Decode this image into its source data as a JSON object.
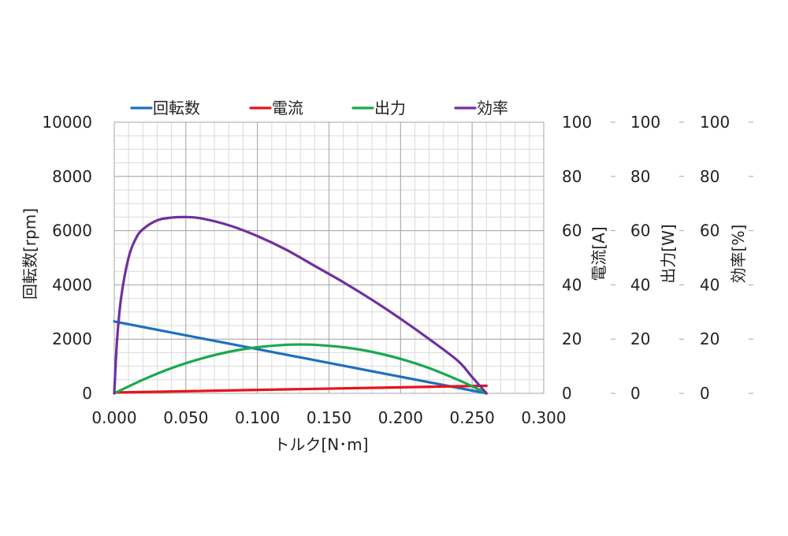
{
  "chart_data": {
    "type": "line",
    "title": "",
    "xlabel": "トルク[N･m]",
    "xlim": [
      0,
      0.3
    ],
    "x_ticks": [
      "0.000",
      "0.050",
      "0.100",
      "0.150",
      "0.200",
      "0.250",
      "0.300"
    ],
    "grid": true,
    "legend_position": "top",
    "axes": [
      {
        "id": "rpm",
        "label": "回転数[rpm]",
        "side": "left",
        "range": [
          0,
          10000
        ],
        "ticks": [
          "0",
          "2000",
          "4000",
          "6000",
          "8000",
          "10000"
        ]
      },
      {
        "id": "current",
        "label": "電流[A]",
        "side": "right",
        "range": [
          0,
          100
        ],
        "ticks": [
          "0",
          "20",
          "40",
          "60",
          "80",
          "100"
        ]
      },
      {
        "id": "power",
        "label": "出力[W]",
        "side": "right",
        "range": [
          0,
          100
        ],
        "ticks": [
          "0",
          "20",
          "40",
          "60",
          "80",
          "100"
        ]
      },
      {
        "id": "efficiency",
        "label": "効率[%]",
        "side": "right",
        "range": [
          0,
          100
        ],
        "ticks": [
          "0",
          "20",
          "40",
          "60",
          "80",
          "100"
        ]
      }
    ],
    "series": [
      {
        "name": "回転数",
        "axis": "rpm",
        "color": "#1f6fbf",
        "x": [
          0,
          0.26
        ],
        "y": [
          2650,
          0
        ]
      },
      {
        "name": "電流",
        "axis": "current",
        "color": "#e8141b",
        "x": [
          0,
          0.26
        ],
        "y": [
          0.3,
          2.8
        ]
      },
      {
        "name": "出力",
        "axis": "power",
        "color": "#1aa850",
        "x": [
          0,
          0.02,
          0.04,
          0.06,
          0.08,
          0.1,
          0.12,
          0.13,
          0.14,
          0.16,
          0.18,
          0.2,
          0.22,
          0.24,
          0.25,
          0.26
        ],
        "y": [
          0,
          5.0,
          9.3,
          12.7,
          15.3,
          17.0,
          17.9,
          18.0,
          17.9,
          17.0,
          15.3,
          12.7,
          9.3,
          5.0,
          2.6,
          0
        ]
      },
      {
        "name": "効率",
        "axis": "efficiency",
        "color": "#7030a0",
        "x": [
          0,
          0.002,
          0.005,
          0.01,
          0.015,
          0.02,
          0.03,
          0.04,
          0.05,
          0.06,
          0.08,
          0.1,
          0.12,
          0.14,
          0.16,
          0.18,
          0.2,
          0.22,
          0.24,
          0.25,
          0.26
        ],
        "y": [
          0,
          20,
          36,
          50,
          57,
          60.5,
          63.8,
          64.8,
          65,
          64.6,
          62,
          58,
          53,
          47,
          41,
          34.5,
          27.5,
          20,
          12,
          6,
          0
        ]
      }
    ]
  }
}
